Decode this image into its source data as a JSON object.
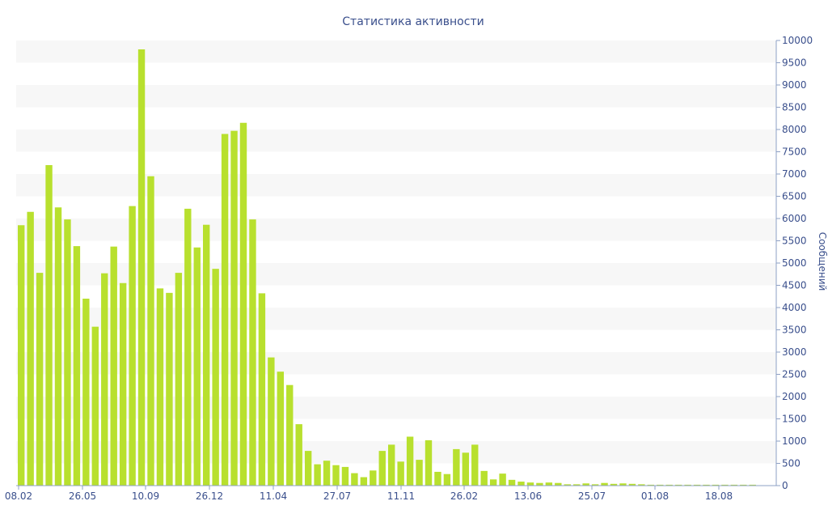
{
  "chart_data": {
    "type": "bar",
    "title": "Статистика активности",
    "xlabel": "",
    "ylabel": "Сообщений",
    "ylim": [
      0,
      10000
    ],
    "yticks": [
      0,
      500,
      1000,
      1500,
      2000,
      2500,
      3000,
      3500,
      4000,
      4500,
      5000,
      5500,
      6000,
      6500,
      7000,
      7500,
      8000,
      8500,
      9000,
      9500,
      10000
    ],
    "x_tick_labels": [
      "08.02",
      "26.05",
      "10.09",
      "26.12",
      "11.04",
      "27.07",
      "11.11",
      "26.02",
      "13.06",
      "25.07",
      "01.08",
      "18.08"
    ],
    "y_axis_position": "right",
    "grid": "alternating horizontal bands",
    "bar_color": "#b8e02e",
    "values": [
      5850,
      6150,
      4780,
      7200,
      6250,
      5980,
      5380,
      4200,
      3570,
      4770,
      5370,
      4550,
      6280,
      9800,
      6950,
      4430,
      4330,
      4780,
      6220,
      5350,
      5860,
      4870,
      7900,
      7970,
      8150,
      5980,
      4320,
      2880,
      2560,
      2260,
      1380,
      780,
      480,
      560,
      460,
      420,
      280,
      190,
      340,
      780,
      920,
      540,
      1100,
      580,
      1020,
      310,
      260,
      820,
      740,
      920,
      330,
      140,
      270,
      130,
      90,
      70,
      60,
      70,
      60,
      30,
      30,
      50,
      30,
      60,
      40,
      50,
      40,
      30,
      20,
      20,
      20,
      20,
      20,
      20,
      20,
      20,
      20,
      20,
      20,
      20
    ]
  }
}
